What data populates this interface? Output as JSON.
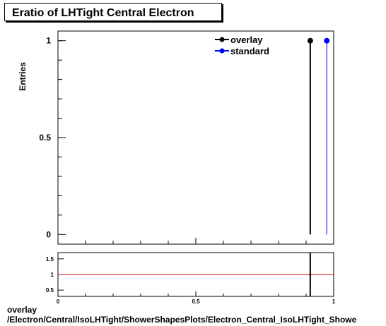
{
  "title": "Eratio of LHTight Central  Electron",
  "footer": {
    "line1": "overlay",
    "line2": "/Electron/Central/IsoLHTight/ShowerShapesPlots/Electron_Central_IsoLHTight_Showe"
  },
  "chart_data": [
    {
      "type": "scatter",
      "ylabel": "Entries",
      "xlim": [
        0,
        1
      ],
      "ylim": [
        -0.05,
        1.05
      ],
      "y_ticks": [
        0,
        0.5,
        1
      ],
      "y_tick_labels": [
        "0",
        "0.5",
        "1"
      ],
      "legend_position": "top-right",
      "series": [
        {
          "name": "overlay",
          "color": "#000000",
          "x": [
            0.915
          ],
          "y": [
            1
          ],
          "bar_from": 0
        },
        {
          "name": "standard",
          "color": "#0000ff",
          "x": [
            0.975
          ],
          "y": [
            1
          ],
          "bar_from": 0
        }
      ]
    },
    {
      "type": "line",
      "xlim": [
        0,
        1
      ],
      "ylim": [
        0.3,
        1.7
      ],
      "x_ticks": [
        0,
        0.5,
        1
      ],
      "x_tick_labels": [
        "0",
        "0.5",
        "1"
      ],
      "y_ticks": [
        0.5,
        1,
        1.5
      ],
      "y_tick_labels": [
        "0.5",
        "1",
        "1.5"
      ],
      "reference_line": {
        "y": 1,
        "color": "#cc0000"
      },
      "marker": {
        "x": 0.915,
        "y": 1,
        "color": "#000000"
      }
    }
  ]
}
